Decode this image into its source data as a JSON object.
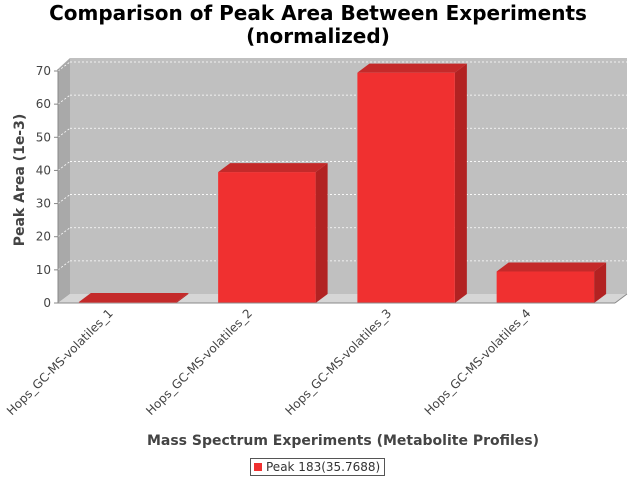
{
  "chart_data": {
    "type": "bar",
    "title_lines": [
      "Comparison of Peak Area Between Experiments",
      "(normalized)"
    ],
    "xlabel": "Mass Spectrum Experiments (Metabolite Profiles)",
    "ylabel": "Peak Area (1e-3)",
    "categories": [
      "Hops_GC-MS-volatiles_1",
      "Hops_GC-MS-volatiles_2",
      "Hops_GC-MS-volatiles_3",
      "Hops_GC-MS-volatiles_4"
    ],
    "series": [
      {
        "name": "Peak 183(35.7688)",
        "values": [
          0.3,
          39.5,
          69.5,
          9.5
        ]
      }
    ],
    "ylim": [
      0,
      70
    ],
    "yticks": [
      0,
      10,
      20,
      30,
      40,
      50,
      60,
      70
    ],
    "grid": true,
    "legend_position": "bottom-center",
    "colors": {
      "bar": "#f03030",
      "bar_top": "#c42a2a",
      "bar_side": "#b22222",
      "plot_bg": "#c0c0c0",
      "plot_floor": "#d6d6d6",
      "plot_wall": "#a9a9a9"
    }
  }
}
